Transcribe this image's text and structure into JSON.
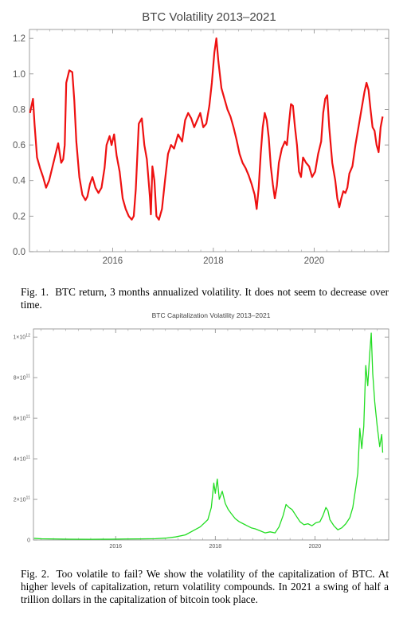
{
  "figures": [
    {
      "caption_label": "Fig. 1.",
      "caption_text": "BTC return, 3 months annualized volatility. It does not seem to decrease over time."
    },
    {
      "caption_label": "Fig. 2.",
      "caption_text": "Too volatile to fail? We show the volatility of the capitalization of BTC. At higher levels of capitalization, return volatility compounds. In 2021 a swing of half a trillion dollars in the capitalization of bitcoin took place."
    }
  ],
  "chart_data": [
    {
      "type": "line",
      "title": "BTC Volatility 2013–2021",
      "xlabel": "",
      "ylabel": "",
      "xlim": [
        2014.35,
        2021.48
      ],
      "ylim": [
        0,
        1.25
      ],
      "x_ticks": [
        2016,
        2018,
        2020
      ],
      "y_ticks": [
        0.0,
        0.2,
        0.4,
        0.6,
        0.8,
        1.0,
        1.2
      ],
      "y_tick_labels": [
        "0.0",
        "0.2",
        "0.4",
        "0.6",
        "0.8",
        "1.0",
        "1.2"
      ],
      "grid": false,
      "color": "#ee1111",
      "series": [
        {
          "name": "",
          "points": [
            [
              2014.36,
              0.78
            ],
            [
              2014.42,
              0.86
            ],
            [
              2014.45,
              0.72
            ],
            [
              2014.5,
              0.53
            ],
            [
              2014.56,
              0.47
            ],
            [
              2014.62,
              0.42
            ],
            [
              2014.68,
              0.36
            ],
            [
              2014.74,
              0.4
            ],
            [
              2014.8,
              0.47
            ],
            [
              2014.86,
              0.54
            ],
            [
              2014.92,
              0.61
            ],
            [
              2014.98,
              0.5
            ],
            [
              2015.02,
              0.52
            ],
            [
              2015.05,
              0.6
            ],
            [
              2015.08,
              0.95
            ],
            [
              2015.14,
              1.02
            ],
            [
              2015.2,
              1.01
            ],
            [
              2015.24,
              0.85
            ],
            [
              2015.28,
              0.62
            ],
            [
              2015.34,
              0.42
            ],
            [
              2015.4,
              0.32
            ],
            [
              2015.46,
              0.29
            ],
            [
              2015.5,
              0.31
            ],
            [
              2015.55,
              0.38
            ],
            [
              2015.6,
              0.42
            ],
            [
              2015.66,
              0.36
            ],
            [
              2015.72,
              0.33
            ],
            [
              2015.78,
              0.36
            ],
            [
              2015.84,
              0.47
            ],
            [
              2015.88,
              0.6
            ],
            [
              2015.94,
              0.65
            ],
            [
              2015.98,
              0.6
            ],
            [
              2016.03,
              0.66
            ],
            [
              2016.08,
              0.54
            ],
            [
              2016.14,
              0.45
            ],
            [
              2016.2,
              0.3
            ],
            [
              2016.26,
              0.24
            ],
            [
              2016.32,
              0.2
            ],
            [
              2016.38,
              0.18
            ],
            [
              2016.42,
              0.2
            ],
            [
              2016.46,
              0.35
            ],
            [
              2016.52,
              0.72
            ],
            [
              2016.58,
              0.75
            ],
            [
              2016.63,
              0.6
            ],
            [
              2016.68,
              0.52
            ],
            [
              2016.74,
              0.31
            ],
            [
              2016.76,
              0.21
            ],
            [
              2016.79,
              0.48
            ],
            [
              2016.83,
              0.4
            ],
            [
              2016.87,
              0.2
            ],
            [
              2016.92,
              0.18
            ],
            [
              2016.98,
              0.24
            ],
            [
              2017.04,
              0.4
            ],
            [
              2017.1,
              0.55
            ],
            [
              2017.16,
              0.6
            ],
            [
              2017.22,
              0.58
            ],
            [
              2017.3,
              0.66
            ],
            [
              2017.38,
              0.62
            ],
            [
              2017.44,
              0.74
            ],
            [
              2017.5,
              0.78
            ],
            [
              2017.56,
              0.75
            ],
            [
              2017.62,
              0.7
            ],
            [
              2017.68,
              0.74
            ],
            [
              2017.74,
              0.78
            ],
            [
              2017.8,
              0.7
            ],
            [
              2017.86,
              0.72
            ],
            [
              2017.92,
              0.82
            ],
            [
              2017.97,
              0.95
            ],
            [
              2018.02,
              1.12
            ],
            [
              2018.06,
              1.2
            ],
            [
              2018.1,
              1.07
            ],
            [
              2018.16,
              0.92
            ],
            [
              2018.22,
              0.86
            ],
            [
              2018.28,
              0.8
            ],
            [
              2018.34,
              0.76
            ],
            [
              2018.4,
              0.7
            ],
            [
              2018.46,
              0.63
            ],
            [
              2018.52,
              0.55
            ],
            [
              2018.58,
              0.5
            ],
            [
              2018.64,
              0.47
            ],
            [
              2018.7,
              0.43
            ],
            [
              2018.76,
              0.38
            ],
            [
              2018.82,
              0.32
            ],
            [
              2018.86,
              0.24
            ],
            [
              2018.9,
              0.36
            ],
            [
              2018.94,
              0.55
            ],
            [
              2018.98,
              0.7
            ],
            [
              2019.02,
              0.78
            ],
            [
              2019.06,
              0.74
            ],
            [
              2019.1,
              0.64
            ],
            [
              2019.14,
              0.48
            ],
            [
              2019.18,
              0.38
            ],
            [
              2019.22,
              0.3
            ],
            [
              2019.26,
              0.37
            ],
            [
              2019.3,
              0.5
            ],
            [
              2019.36,
              0.58
            ],
            [
              2019.42,
              0.62
            ],
            [
              2019.46,
              0.6
            ],
            [
              2019.5,
              0.72
            ],
            [
              2019.54,
              0.83
            ],
            [
              2019.58,
              0.82
            ],
            [
              2019.62,
              0.7
            ],
            [
              2019.66,
              0.6
            ],
            [
              2019.7,
              0.45
            ],
            [
              2019.74,
              0.42
            ],
            [
              2019.78,
              0.53
            ],
            [
              2019.84,
              0.5
            ],
            [
              2019.9,
              0.48
            ],
            [
              2019.96,
              0.42
            ],
            [
              2020.02,
              0.45
            ],
            [
              2020.08,
              0.55
            ],
            [
              2020.14,
              0.62
            ],
            [
              2020.18,
              0.78
            ],
            [
              2020.22,
              0.86
            ],
            [
              2020.26,
              0.88
            ],
            [
              2020.3,
              0.7
            ],
            [
              2020.36,
              0.5
            ],
            [
              2020.42,
              0.4
            ],
            [
              2020.46,
              0.3
            ],
            [
              2020.5,
              0.25
            ],
            [
              2020.54,
              0.3
            ],
            [
              2020.58,
              0.34
            ],
            [
              2020.62,
              0.33
            ],
            [
              2020.66,
              0.36
            ],
            [
              2020.7,
              0.44
            ],
            [
              2020.76,
              0.48
            ],
            [
              2020.82,
              0.6
            ],
            [
              2020.88,
              0.7
            ],
            [
              2020.94,
              0.8
            ],
            [
              2021.0,
              0.9
            ],
            [
              2021.04,
              0.95
            ],
            [
              2021.08,
              0.91
            ],
            [
              2021.12,
              0.8
            ],
            [
              2021.16,
              0.7
            ],
            [
              2021.2,
              0.68
            ],
            [
              2021.24,
              0.6
            ],
            [
              2021.28,
              0.56
            ],
            [
              2021.32,
              0.7
            ],
            [
              2021.36,
              0.76
            ]
          ]
        }
      ]
    },
    {
      "type": "line",
      "title": "BTC Capitalization Volatility 2013–2021",
      "xlabel": "",
      "ylabel": "",
      "xlim": [
        2014.35,
        2021.48
      ],
      "ylim": [
        0,
        1040000000000.0
      ],
      "x_ticks": [
        2016,
        2018,
        2020
      ],
      "y_ticks": [
        0,
        200000000000.0,
        400000000000.0,
        600000000000.0,
        800000000000.0,
        1000000000000.0
      ],
      "y_tick_labels": [
        {
          "mantissa": "0",
          "exp": ""
        },
        {
          "mantissa": "2×10",
          "exp": "11"
        },
        {
          "mantissa": "4×10",
          "exp": "11"
        },
        {
          "mantissa": "6×10",
          "exp": "11"
        },
        {
          "mantissa": "8×10",
          "exp": "11"
        },
        {
          "mantissa": "1×10",
          "exp": "12"
        }
      ],
      "grid": false,
      "color": "#22dd22",
      "series": [
        {
          "name": "",
          "points": [
            [
              2014.36,
              8000000000.0
            ],
            [
              2014.5,
              6000000000.0
            ],
            [
              2014.8,
              5000000000.0
            ],
            [
              2015.1,
              4000000000.0
            ],
            [
              2015.5,
              3500000000.0
            ],
            [
              2015.9,
              4000000000.0
            ],
            [
              2016.2,
              5000000000.0
            ],
            [
              2016.5,
              5500000000.0
            ],
            [
              2016.8,
              6500000000.0
            ],
            [
              2017.0,
              9000000000.0
            ],
            [
              2017.2,
              15000000000.0
            ],
            [
              2017.4,
              25000000000.0
            ],
            [
              2017.55,
              45000000000.0
            ],
            [
              2017.7,
              65000000000.0
            ],
            [
              2017.85,
              100000000000.0
            ],
            [
              2017.92,
              160000000000.0
            ],
            [
              2017.97,
              280000000000.0
            ],
            [
              2018.0,
              230000000000.0
            ],
            [
              2018.04,
              300000000000.0
            ],
            [
              2018.08,
              200000000000.0
            ],
            [
              2018.14,
              240000000000.0
            ],
            [
              2018.2,
              180000000000.0
            ],
            [
              2018.26,
              150000000000.0
            ],
            [
              2018.32,
              130000000000.0
            ],
            [
              2018.4,
              105000000000.0
            ],
            [
              2018.48,
              90000000000.0
            ],
            [
              2018.56,
              80000000000.0
            ],
            [
              2018.64,
              70000000000.0
            ],
            [
              2018.72,
              60000000000.0
            ],
            [
              2018.8,
              55000000000.0
            ],
            [
              2018.9,
              45000000000.0
            ],
            [
              2019.0,
              35000000000.0
            ],
            [
              2019.1,
              40000000000.0
            ],
            [
              2019.2,
              35000000000.0
            ],
            [
              2019.28,
              65000000000.0
            ],
            [
              2019.36,
              120000000000.0
            ],
            [
              2019.42,
              175000000000.0
            ],
            [
              2019.48,
              160000000000.0
            ],
            [
              2019.54,
              150000000000.0
            ],
            [
              2019.62,
              120000000000.0
            ],
            [
              2019.7,
              90000000000.0
            ],
            [
              2019.78,
              75000000000.0
            ],
            [
              2019.86,
              80000000000.0
            ],
            [
              2019.94,
              70000000000.0
            ],
            [
              2020.02,
              85000000000.0
            ],
            [
              2020.1,
              90000000000.0
            ],
            [
              2020.16,
              120000000000.0
            ],
            [
              2020.22,
              160000000000.0
            ],
            [
              2020.26,
              145000000000.0
            ],
            [
              2020.3,
              100000000000.0
            ],
            [
              2020.38,
              70000000000.0
            ],
            [
              2020.46,
              50000000000.0
            ],
            [
              2020.54,
              60000000000.0
            ],
            [
              2020.62,
              80000000000.0
            ],
            [
              2020.7,
              110000000000.0
            ],
            [
              2020.76,
              160000000000.0
            ],
            [
              2020.82,
              260000000000.0
            ],
            [
              2020.86,
              330000000000.0
            ],
            [
              2020.9,
              550000000000.0
            ],
            [
              2020.94,
              450000000000.0
            ],
            [
              2020.98,
              560000000000.0
            ],
            [
              2021.02,
              860000000000.0
            ],
            [
              2021.06,
              760000000000.0
            ],
            [
              2021.1,
              920000000000.0
            ],
            [
              2021.13,
              1020000000000.0
            ],
            [
              2021.16,
              820000000000.0
            ],
            [
              2021.2,
              680000000000.0
            ],
            [
              2021.25,
              560000000000.0
            ],
            [
              2021.3,
              460000000000.0
            ],
            [
              2021.34,
              520000000000.0
            ],
            [
              2021.36,
              430000000000.0
            ]
          ]
        }
      ]
    }
  ]
}
